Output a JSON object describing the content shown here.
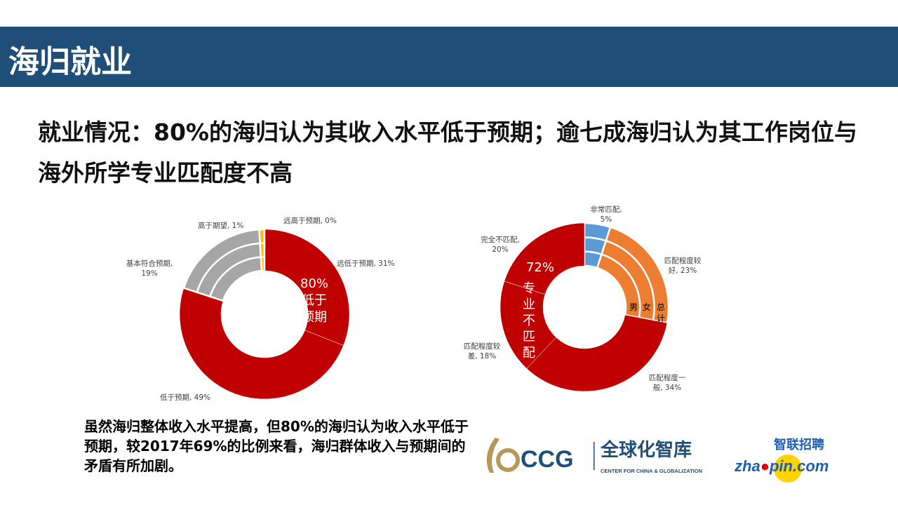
{
  "header": {
    "title": "海归就业"
  },
  "headline": "就业情况：80%的海归认为其收入水平低于预期；逾七成海归认为其工作岗位与海外所学专业匹配度不高",
  "note": "虽然海归整体收入水平提高，但80%的海归认为收入水平低于预期，较2017年69%的比例来看，海归群体收入与预期间的矛盾有所加剧。",
  "logos": {
    "ccg": "CCG 全球化智库 CENTER FOR CHINA & GLOBALIZATION",
    "zhaopin": "智联招聘 zhaopin.com"
  },
  "chart_data": [
    {
      "type": "pie",
      "variant": "donut",
      "categories": [
        "远低于预期",
        "低于预期",
        "基本符合预期",
        "高于期望",
        "远高于预期"
      ],
      "values": [
        31,
        49,
        19,
        1,
        0
      ],
      "labels": [
        "远低于预期, 31%",
        "低于预期, 49%",
        "基本符合预期, 19%",
        "高于期望, 1%",
        "远高于预期, 0%"
      ],
      "colors": [
        "#c00000",
        "#c00000",
        "#a6a6a6",
        "#ffc000",
        "#ed7d31"
      ],
      "annotation": "80% 低于预期"
    },
    {
      "type": "pie",
      "variant": "donut",
      "categories": [
        "非常匹配",
        "匹配程度较好",
        "匹配程度一般",
        "匹配程度较差",
        "完全不匹配"
      ],
      "values": [
        5,
        23,
        34,
        18,
        20
      ],
      "labels": [
        "非常匹配, 5%",
        "匹配程度较好, 23%",
        "匹配程度一般, 34%",
        "匹配程度较差, 18%",
        "完全不匹配, 20%"
      ],
      "colors": [
        "#5b9bd5",
        "#ed7d31",
        "#c00000",
        "#c00000",
        "#c00000"
      ],
      "annotation_pct": "72%",
      "annotation_text": "专业不匹配",
      "ring_labels": [
        "男",
        "女",
        "总计"
      ]
    }
  ]
}
